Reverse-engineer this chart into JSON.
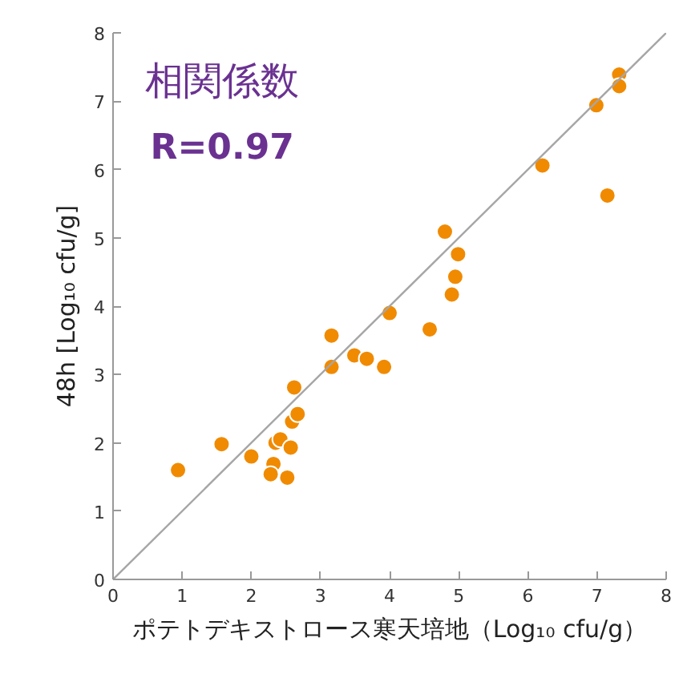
{
  "chart_data": {
    "type": "scatter",
    "xlabel": "ポテトデキストロース寒天培地（Log₁₀ cfu/g）",
    "ylabel": "48h [Log₁₀ cfu/g]",
    "annotations": [
      "相関係数",
      "R=0.97"
    ],
    "xlim": [
      0,
      8
    ],
    "ylim": [
      0,
      8
    ],
    "xticks": [
      0,
      1,
      2,
      3,
      4,
      5,
      6,
      7,
      8
    ],
    "yticks": [
      0,
      1,
      2,
      3,
      4,
      5,
      6,
      7,
      8
    ],
    "grid": false,
    "marker": "circle",
    "series": [
      {
        "color": "#f08a00",
        "x": [
          0.94,
          1.57,
          2.0,
          2.32,
          2.28,
          2.52,
          2.35,
          2.42,
          2.57,
          2.59,
          2.67,
          2.62,
          3.16,
          3.16,
          3.49,
          3.67,
          3.92,
          4.0,
          4.58,
          4.8,
          4.99,
          4.95,
          4.9,
          6.21,
          7.15,
          6.99,
          7.32,
          7.32
        ],
        "values": [
          1.6,
          1.98,
          1.8,
          1.69,
          1.54,
          1.49,
          2.0,
          2.05,
          1.93,
          2.31,
          2.42,
          2.81,
          3.11,
          3.57,
          3.28,
          3.23,
          3.11,
          3.9,
          3.66,
          5.09,
          4.76,
          4.43,
          4.17,
          6.06,
          5.62,
          6.94,
          7.39,
          7.22
        ]
      },
      {
        "type": "line",
        "marker": "none",
        "color": "#a6a6a6",
        "x": [
          0,
          8
        ],
        "values": [
          0,
          8
        ]
      }
    ]
  }
}
